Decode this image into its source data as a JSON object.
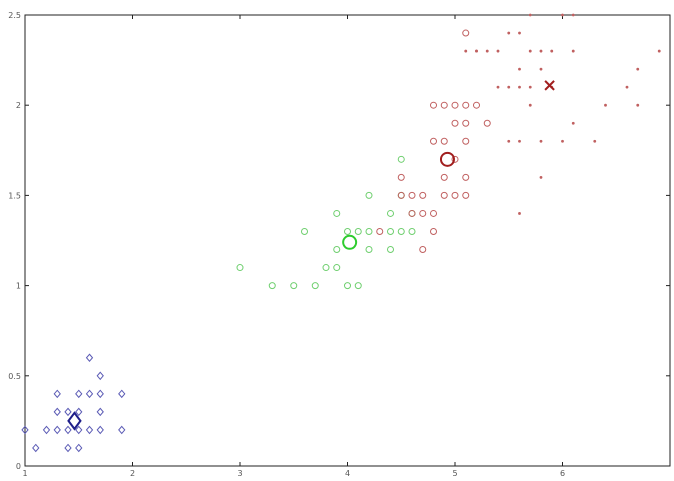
{
  "chart_data": {
    "type": "scatter",
    "title": "",
    "xlabel": "",
    "ylabel": "",
    "xlim": [
      1,
      7
    ],
    "ylim": [
      0,
      2.5
    ],
    "grid": false,
    "x_ticks": [
      "1",
      "2",
      "3",
      "4",
      "5",
      "6"
    ],
    "y_ticks": [
      "0",
      "0.5",
      "1",
      "1.5",
      "2",
      "2.5"
    ],
    "series": [
      {
        "marker": "diamond",
        "color": "#5b5bb5",
        "points": [
          [
            1.0,
            0.2
          ],
          [
            1.1,
            0.1
          ],
          [
            1.2,
            0.2
          ],
          [
            1.3,
            0.2
          ],
          [
            1.3,
            0.3
          ],
          [
            1.3,
            0.4
          ],
          [
            1.4,
            0.1
          ],
          [
            1.4,
            0.2
          ],
          [
            1.4,
            0.3
          ],
          [
            1.5,
            0.1
          ],
          [
            1.5,
            0.2
          ],
          [
            1.5,
            0.3
          ],
          [
            1.5,
            0.4
          ],
          [
            1.6,
            0.2
          ],
          [
            1.6,
            0.4
          ],
          [
            1.6,
            0.6
          ],
          [
            1.7,
            0.2
          ],
          [
            1.7,
            0.3
          ],
          [
            1.7,
            0.4
          ],
          [
            1.7,
            0.5
          ],
          [
            1.9,
            0.2
          ],
          [
            1.9,
            0.4
          ]
        ],
        "centroid": [
          1.46,
          0.25
        ]
      },
      {
        "marker": "circle",
        "color": "#6fcf6f",
        "points": [
          [
            3.0,
            1.1
          ],
          [
            3.3,
            1.0
          ],
          [
            3.5,
            1.0
          ],
          [
            3.6,
            1.3
          ],
          [
            3.7,
            1.0
          ],
          [
            3.8,
            1.1
          ],
          [
            3.9,
            1.1
          ],
          [
            3.9,
            1.2
          ],
          [
            4.0,
            1.0
          ],
          [
            4.0,
            1.3
          ],
          [
            4.1,
            1.0
          ],
          [
            4.1,
            1.3
          ],
          [
            4.2,
            1.2
          ],
          [
            4.2,
            1.3
          ],
          [
            4.2,
            1.5
          ],
          [
            4.4,
            1.2
          ],
          [
            4.4,
            1.3
          ],
          [
            4.5,
            1.3
          ],
          [
            4.5,
            1.5
          ],
          [
            4.6,
            1.3
          ],
          [
            4.6,
            1.4
          ],
          [
            4.5,
            1.7
          ],
          [
            3.9,
            1.4
          ],
          [
            4.4,
            1.4
          ]
        ],
        "centroid": [
          4.02,
          1.24
        ]
      },
      {
        "marker": "circle",
        "color": "#c06060",
        "points": [
          [
            4.3,
            1.3
          ],
          [
            4.5,
            1.5
          ],
          [
            4.5,
            1.6
          ],
          [
            4.6,
            1.4
          ],
          [
            4.6,
            1.5
          ],
          [
            4.7,
            1.2
          ],
          [
            4.7,
            1.4
          ],
          [
            4.7,
            1.5
          ],
          [
            4.8,
            1.4
          ],
          [
            4.8,
            1.8
          ],
          [
            4.8,
            1.3
          ],
          [
            4.9,
            1.5
          ],
          [
            4.9,
            1.8
          ],
          [
            5.0,
            1.7
          ],
          [
            5.0,
            1.5
          ],
          [
            5.1,
            1.6
          ],
          [
            5.1,
            1.9
          ],
          [
            5.1,
            1.5
          ],
          [
            4.8,
            2.0
          ],
          [
            4.9,
            2.0
          ],
          [
            5.0,
            2.0
          ],
          [
            5.1,
            2.0
          ],
          [
            5.2,
            2.0
          ],
          [
            5.3,
            1.9
          ],
          [
            4.9,
            1.6
          ],
          [
            5.0,
            1.9
          ],
          [
            5.1,
            1.8
          ],
          [
            5.1,
            2.4
          ]
        ],
        "centroid": [
          4.93,
          1.7
        ]
      },
      {
        "marker": "dot",
        "color": "#c06060",
        "points": [
          [
            5.1,
            2.3
          ],
          [
            5.2,
            2.3
          ],
          [
            5.3,
            2.3
          ],
          [
            5.4,
            2.3
          ],
          [
            5.4,
            2.1
          ],
          [
            5.5,
            2.1
          ],
          [
            5.6,
            2.1
          ],
          [
            5.6,
            2.4
          ],
          [
            5.7,
            2.1
          ],
          [
            5.7,
            2.3
          ],
          [
            5.7,
            2.5
          ],
          [
            5.8,
            2.2
          ],
          [
            5.8,
            1.8
          ],
          [
            5.8,
            2.3
          ],
          [
            5.9,
            2.3
          ],
          [
            5.9,
            2.1
          ],
          [
            6.0,
            2.5
          ],
          [
            6.0,
            1.8
          ],
          [
            6.1,
            1.9
          ],
          [
            6.1,
            2.3
          ],
          [
            6.1,
            2.5
          ],
          [
            6.3,
            1.8
          ],
          [
            6.4,
            2.0
          ],
          [
            6.6,
            2.1
          ],
          [
            6.7,
            2.2
          ],
          [
            6.7,
            2.0
          ],
          [
            6.9,
            2.3
          ],
          [
            5.5,
            1.8
          ],
          [
            5.6,
            1.8
          ],
          [
            5.7,
            2.0
          ],
          [
            5.8,
            1.6
          ],
          [
            5.6,
            1.4
          ],
          [
            5.2,
            2.3
          ],
          [
            5.5,
            2.4
          ],
          [
            5.6,
            2.2
          ]
        ],
        "centroid": [
          5.88,
          2.11
        ]
      }
    ]
  }
}
